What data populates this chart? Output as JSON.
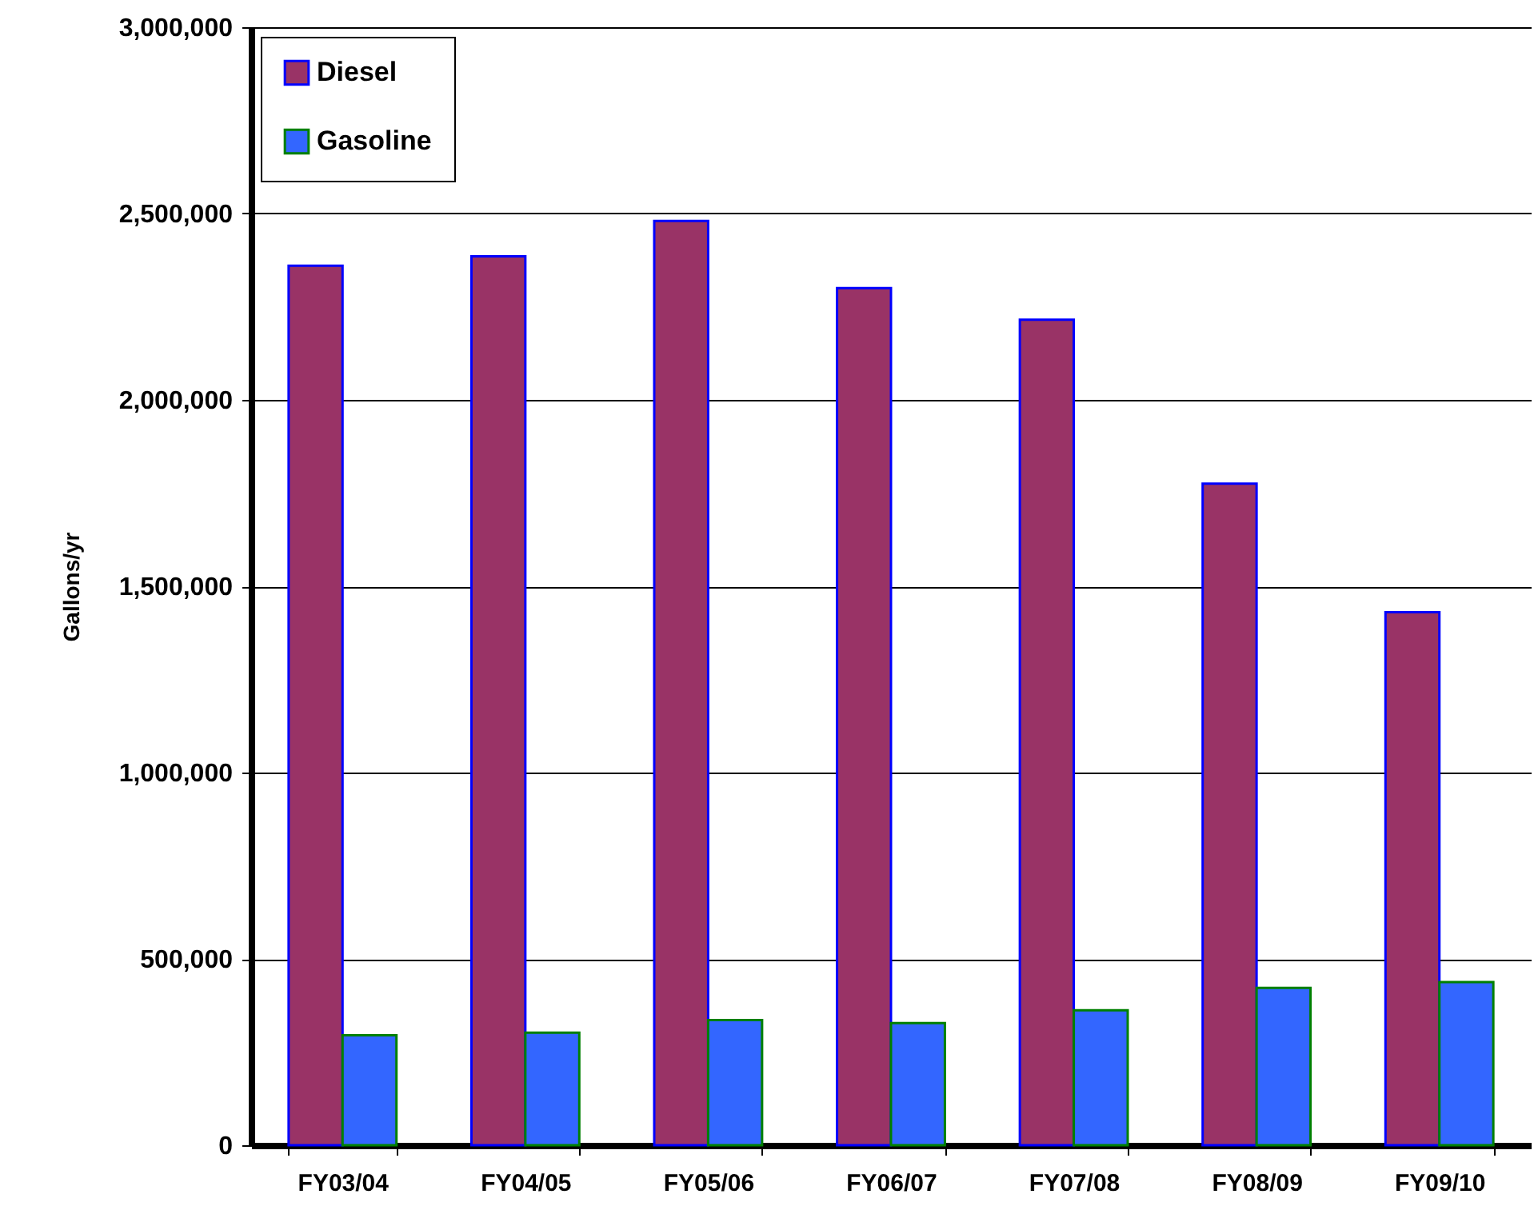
{
  "chart_data": {
    "type": "bar",
    "ylabel": "Gallons/yr",
    "categories": [
      "FY03/04",
      "FY04/05",
      "FY05/06",
      "FY06/07",
      "FY07/08",
      "FY08/09",
      "FY09/10"
    ],
    "series": [
      {
        "name": "Diesel",
        "color": "#993366",
        "values": [
          2360000,
          2385000,
          2480000,
          2300000,
          2215000,
          1775000,
          1430000
        ]
      },
      {
        "name": "Gasoline",
        "color": "#3366ff",
        "values": [
          295000,
          302000,
          336000,
          328000,
          362000,
          422000,
          438000
        ]
      }
    ],
    "ylim": [
      0,
      3000000
    ],
    "yticks": [
      {
        "value": 0,
        "label": "0"
      },
      {
        "value": 500000,
        "label": "500,000"
      },
      {
        "value": 1000000,
        "label": "1,000,000"
      },
      {
        "value": 1500000,
        "label": "1,500,000"
      },
      {
        "value": 2000000,
        "label": "2,000,000"
      },
      {
        "value": 2500000,
        "label": "2,500,000"
      },
      {
        "value": 3000000,
        "label": "3,000,000"
      }
    ],
    "grid": "y",
    "legend": "top left"
  }
}
